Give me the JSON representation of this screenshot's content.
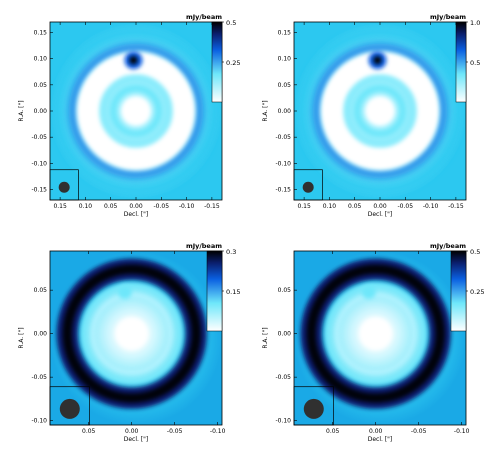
{
  "chart_data": [
    {
      "type": "heatmap",
      "colormap": "cubehelix-blue (white → cyan → blue → black)",
      "image": "bright ring with central blob; dark spot at top gap; faint outer halo",
      "rendering": "ring-bright",
      "unit_label": "mJy/beam",
      "colorbar_range": [
        0,
        0.5
      ],
      "colorbar_ticks": [
        "0.5",
        "0.25"
      ],
      "colorbar_tick_values": [
        0.5,
        0.25
      ],
      "xlabel": "Decl. [\"]",
      "ylabel": "R.A. [\"]",
      "xlim": [
        0.17,
        -0.17
      ],
      "ylim": [
        -0.17,
        0.17
      ],
      "x_ticks": [
        "-0.15",
        "-0.10",
        "-0.05",
        "0.00",
        "0.05",
        "0.10",
        "0.15"
      ],
      "x_tick_values": [
        -0.15,
        -0.1,
        -0.05,
        0.0,
        0.05,
        0.1,
        0.15
      ],
      "y_ticks": [
        "0.15",
        "0.10",
        "0.05",
        "0.00",
        "-0.05",
        "-0.10",
        "-0.15"
      ],
      "y_tick_values": [
        0.15,
        0.1,
        0.05,
        0.0,
        -0.05,
        -0.1,
        -0.15
      ],
      "beam": "filled circle in boxed lower-left corner"
    },
    {
      "type": "heatmap",
      "colormap": "cubehelix-blue (white → cyan → blue → black)",
      "image": "bright ring with central blob; dark spot at top gap; faint outer halo",
      "rendering": "ring-bright",
      "unit_label": "mJy/beam",
      "colorbar_range": [
        0,
        1.0
      ],
      "colorbar_ticks": [
        "1.0",
        "0.5"
      ],
      "colorbar_tick_values": [
        1.0,
        0.5
      ],
      "xlabel": "Decl. [\"]",
      "ylabel": "R.A. [\"]",
      "xlim": [
        0.17,
        -0.17
      ],
      "ylim": [
        -0.17,
        0.17
      ],
      "x_ticks": [
        "-0.15",
        "-0.10",
        "-0.05",
        "0.00",
        "0.05",
        "0.10",
        "0.15"
      ],
      "x_tick_values": [
        -0.15,
        -0.1,
        -0.05,
        0.0,
        0.05,
        0.1,
        0.15
      ],
      "y_ticks": [
        "0.15",
        "0.10",
        "0.05",
        "0.00",
        "-0.05",
        "-0.10",
        "-0.15"
      ],
      "y_tick_values": [
        0.15,
        0.1,
        0.05,
        0.0,
        -0.05,
        -0.1,
        -0.15
      ],
      "beam": "filled circle in boxed lower-left corner"
    },
    {
      "type": "heatmap",
      "colormap": "cubehelix-blue (white → cyan → blue → black)",
      "image": "dark ring with bright centre; notch at top of ring",
      "rendering": "ring-dark",
      "unit_label": "mJy/beam",
      "colorbar_range": [
        0,
        0.3
      ],
      "colorbar_ticks": [
        "0.3",
        "0.15"
      ],
      "colorbar_tick_values": [
        0.3,
        0.15
      ],
      "xlabel": "Decl. [\"]",
      "ylabel": "R.A. [\"]",
      "xlim": [
        0.095,
        -0.105
      ],
      "ylim": [
        -0.105,
        0.095
      ],
      "x_ticks": [
        "-0.10",
        "-0.05",
        "0.00",
        "0.05"
      ],
      "x_tick_values": [
        -0.1,
        -0.05,
        0.0,
        0.05
      ],
      "y_ticks": [
        "0.05",
        "0.00",
        "-0.05",
        "-0.10"
      ],
      "y_tick_values": [
        0.05,
        0.0,
        -0.05,
        -0.1
      ],
      "beam": "filled circle in boxed lower-left corner"
    },
    {
      "type": "heatmap",
      "colormap": "cubehelix-blue (white → cyan → blue → black)",
      "image": "dark ring with bright centre; notch at top of ring",
      "rendering": "ring-dark",
      "unit_label": "mJy/beam",
      "colorbar_range": [
        0,
        0.5
      ],
      "colorbar_ticks": [
        "0.5",
        "0.25"
      ],
      "colorbar_tick_values": [
        0.5,
        0.25
      ],
      "xlabel": "Decl. [\"]",
      "ylabel": "R.A. [\"]",
      "xlim": [
        0.095,
        -0.105
      ],
      "ylim": [
        -0.105,
        0.095
      ],
      "x_ticks": [
        "-0.10",
        "-0.05",
        "0.00",
        "0.05"
      ],
      "x_tick_values": [
        -0.1,
        -0.05,
        0.0,
        0.05
      ],
      "y_ticks": [
        "0.05",
        "0.00",
        "-0.05",
        "-0.10"
      ],
      "y_tick_values": [
        0.05,
        0.0,
        -0.05,
        -0.1
      ],
      "beam": "filled circle in boxed lower-left corner"
    }
  ],
  "colors": {
    "white": "#ffffff",
    "cyan_light": "#b8f4ff",
    "cyan": "#6ee7fa",
    "cyan_mid": "#2cc8f0",
    "blue": "#0a5fe0",
    "navy": "#0a1f6e",
    "black": "#000000",
    "beam": "#303030"
  }
}
